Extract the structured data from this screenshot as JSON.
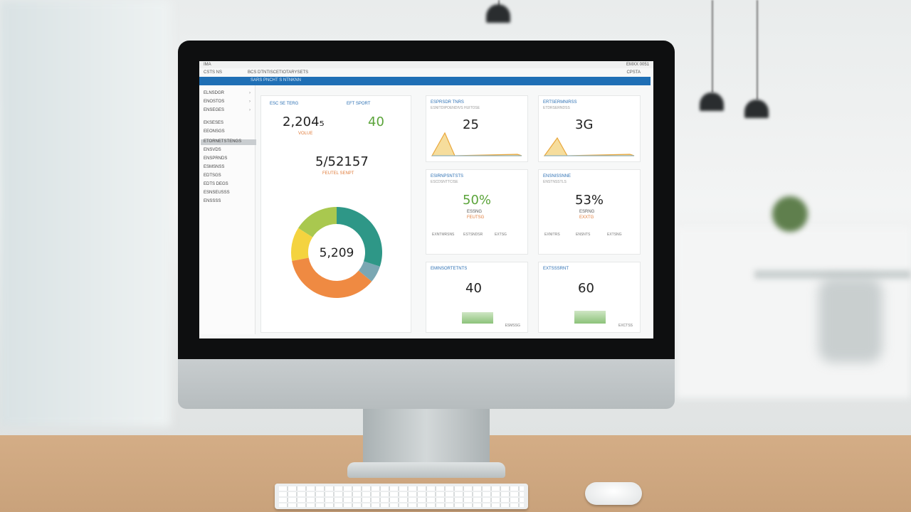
{
  "window": {
    "app_name": "IMA",
    "control_label": "EMXX 0051"
  },
  "menubar": {
    "items": [
      "CSTS NS",
      "BCS DTNTISCETIOTARYSETS"
    ],
    "right_label": "CPSTA"
  },
  "header": {
    "title": "SARS PNCHT S NTNKNN"
  },
  "sidebar": {
    "items": [
      {
        "label": "ELNSDGR"
      },
      {
        "label": "ENOSTOS"
      },
      {
        "label": "ENSEGES"
      },
      {
        "label": "EKSESES"
      },
      {
        "label": "EEONSGS"
      },
      {
        "label": "ETORNETSTENGS"
      },
      {
        "label": "ENSVDS"
      },
      {
        "label": "ENSPRNDS"
      },
      {
        "label": "ESMSNSS"
      },
      {
        "label": "EDTSGS"
      },
      {
        "label": "EDTS DEGS"
      },
      {
        "label": "ESNSEUSSS"
      },
      {
        "label": "ENSSSS"
      }
    ]
  },
  "overview": {
    "stat_1": {
      "label": "ESC SE TERG",
      "value": "2,204₅",
      "sub": "VOLUE"
    },
    "stat_2": {
      "label": "EFT SPORT",
      "value": "40"
    },
    "total": {
      "value": "5/52157",
      "sub": "FEUTEL SENPT"
    },
    "donut": {
      "center_value": "5,209",
      "segments": [
        {
          "color": "#2e9787",
          "value": 30
        },
        {
          "color": "#7aa7b3",
          "value": 6
        },
        {
          "color": "#ef8a42",
          "value": 36
        },
        {
          "color": "#f4d33f",
          "value": 12
        },
        {
          "color": "#a9c84f",
          "value": 16
        }
      ]
    }
  },
  "tiles": [
    {
      "title": "ESPRSDR TNRS",
      "sub": "ESNITDIPOENDIVS HUITOSE",
      "value": "25",
      "color": "#e9a73c",
      "kind": "peak",
      "level": 0.7
    },
    {
      "title": "ERTSERMNIRSS",
      "sub": "ETDRSERNDSS",
      "value": "3G",
      "color": "#e9a73c",
      "kind": "peak",
      "level": 0.55
    },
    {
      "title": "ESIRNPSNTSTS",
      "sub": "ESCDSNTTCISE",
      "value": "50%",
      "sub_label": "ESSNG",
      "sub2": "FEUTSG",
      "foot": [
        "EXNTMRSNS",
        "ESTSNDSR",
        "EXTSG"
      ],
      "kind": "gauge"
    },
    {
      "title": "ENSNISSNNE",
      "sub": "ENSTNSSTLS",
      "value": "53%",
      "sub_label": "ESRNG",
      "sub2": "EXXTG",
      "foot": [
        "EXNITRS",
        "ENSNTS",
        "EXTSNG"
      ],
      "kind": "gauge"
    },
    {
      "title": "EMINSORTETNTS",
      "value": "40",
      "foot": [
        "ESMSSG"
      ],
      "kind": "bar",
      "level": 0.4
    },
    {
      "title": "EXTSSSRNT",
      "value": "60",
      "foot": [
        "EXCTSS"
      ],
      "kind": "bar",
      "level": 0.45
    }
  ],
  "colors": {
    "accent_blue": "#1f6fb5",
    "green": "#5ba43a",
    "orange": "#e07b39"
  }
}
